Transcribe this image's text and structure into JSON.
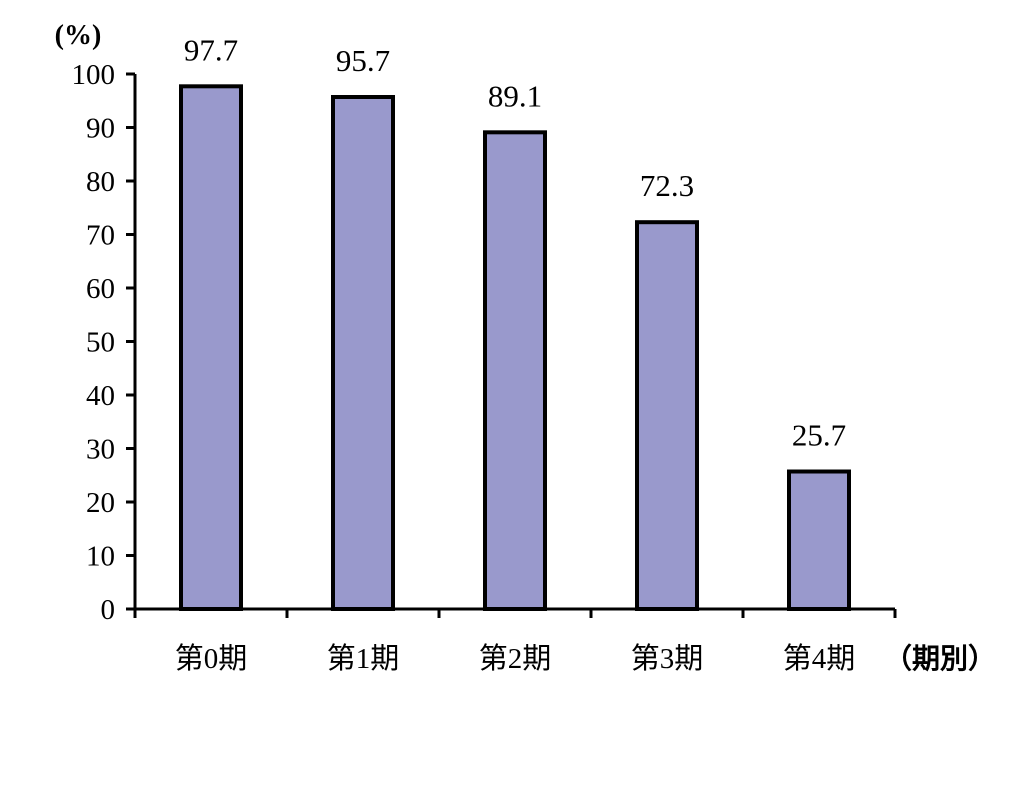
{
  "chart_data": {
    "type": "bar",
    "y_unit_label": "(%)",
    "x_unit_label": "（期別）",
    "categories": [
      "第0期",
      "第1期",
      "第2期",
      "第3期",
      "第4期"
    ],
    "values": [
      97.7,
      95.7,
      89.1,
      72.3,
      25.7
    ],
    "data_labels": [
      "97.7",
      "95.7",
      "89.1",
      "72.3",
      "25.7"
    ],
    "ylim": [
      0,
      100
    ],
    "y_ticks": [
      0,
      10,
      20,
      30,
      40,
      50,
      60,
      70,
      80,
      90,
      100
    ],
    "grid": false,
    "legend": "none",
    "bar_color": "#9999CC",
    "bar_edge_color": "#000000"
  }
}
